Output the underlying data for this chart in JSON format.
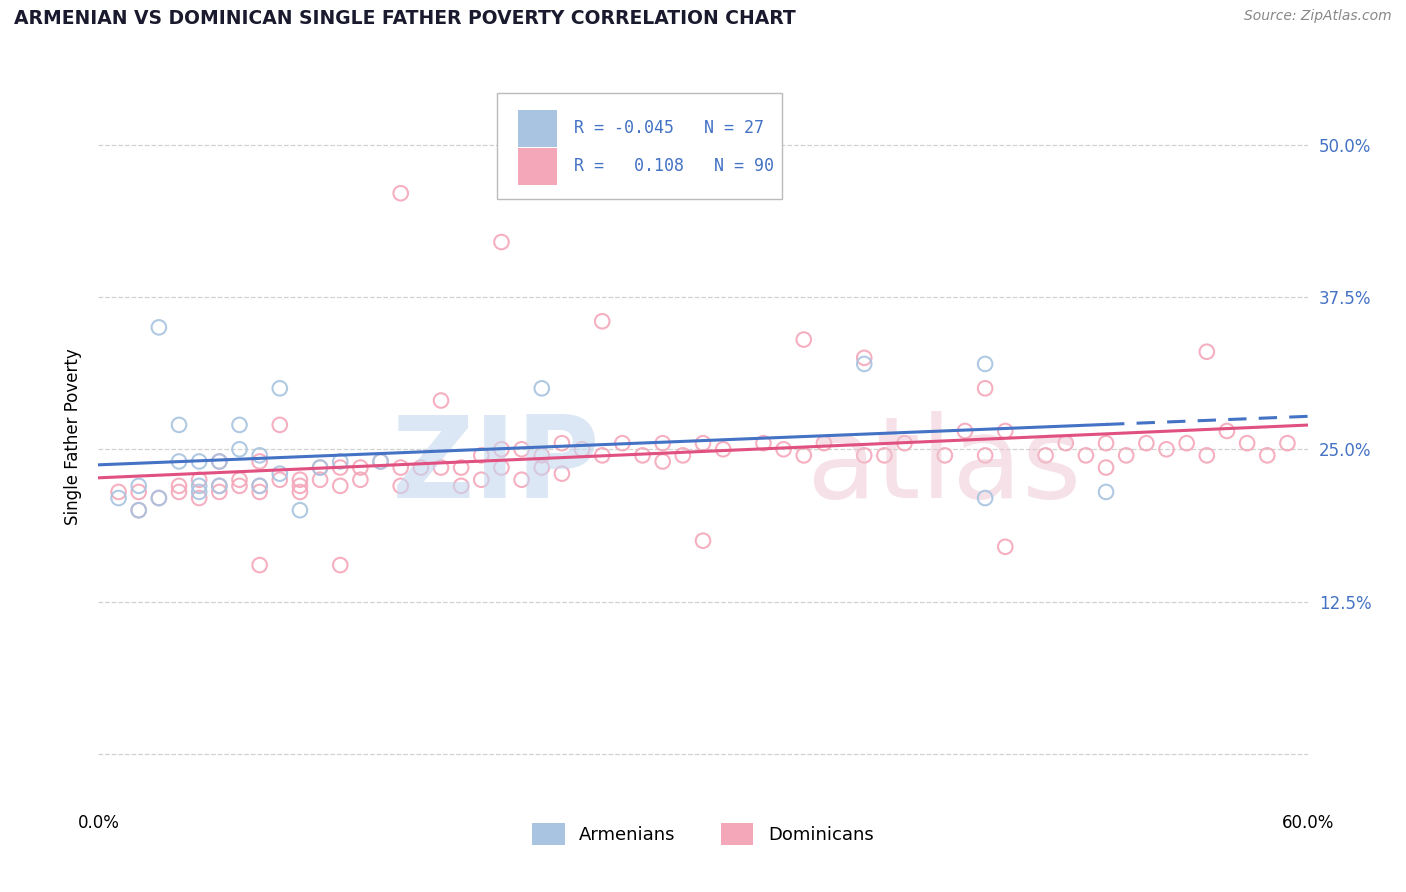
{
  "title": "ARMENIAN VS DOMINICAN SINGLE FATHER POVERTY CORRELATION CHART",
  "source": "Source: ZipAtlas.com",
  "ylabel": "Single Father Poverty",
  "xlim": [
    0.0,
    0.6
  ],
  "ylim": [
    -0.04,
    0.56
  ],
  "armenian_color": "#a8c4e0",
  "dominican_color": "#f4a7b9",
  "armenian_line_color": "#4472c4",
  "dominican_line_color": "#e05080",
  "R_armenian": -0.045,
  "N_armenian": 27,
  "R_dominican": 0.108,
  "N_dominican": 90,
  "legend_label_armenian": "Armenians",
  "legend_label_dominican": "Dominicans",
  "background_color": "#ffffff",
  "grid_color": "#cccccc",
  "yticks": [
    0.0,
    0.125,
    0.25,
    0.375,
    0.5
  ],
  "ytick_labels": [
    "",
    "12.5%",
    "25.0%",
    "37.5%",
    "50.0%"
  ],
  "xtick_positions": [
    0.0,
    0.6
  ],
  "xtick_labels": [
    "0.0%",
    "60.0%"
  ],
  "source_text": "Source: ZipAtlas.com",
  "arm_x": [
    0.01,
    0.02,
    0.02,
    0.03,
    0.03,
    0.04,
    0.04,
    0.05,
    0.05,
    0.05,
    0.06,
    0.06,
    0.07,
    0.07,
    0.08,
    0.08,
    0.09,
    0.09,
    0.1,
    0.11,
    0.12,
    0.14,
    0.22,
    0.38,
    0.44,
    0.44,
    0.5
  ],
  "arm_y": [
    0.21,
    0.2,
    0.22,
    0.35,
    0.21,
    0.27,
    0.24,
    0.22,
    0.24,
    0.215,
    0.24,
    0.22,
    0.27,
    0.25,
    0.245,
    0.22,
    0.23,
    0.3,
    0.2,
    0.235,
    0.24,
    0.24,
    0.3,
    0.32,
    0.32,
    0.21,
    0.215
  ],
  "dom_x": [
    0.01,
    0.02,
    0.02,
    0.03,
    0.04,
    0.04,
    0.05,
    0.05,
    0.06,
    0.06,
    0.06,
    0.07,
    0.07,
    0.08,
    0.08,
    0.08,
    0.09,
    0.09,
    0.1,
    0.1,
    0.1,
    0.11,
    0.11,
    0.12,
    0.12,
    0.13,
    0.13,
    0.14,
    0.15,
    0.15,
    0.16,
    0.17,
    0.17,
    0.18,
    0.18,
    0.19,
    0.19,
    0.2,
    0.2,
    0.21,
    0.21,
    0.22,
    0.22,
    0.23,
    0.23,
    0.24,
    0.25,
    0.26,
    0.27,
    0.28,
    0.28,
    0.29,
    0.3,
    0.31,
    0.33,
    0.34,
    0.35,
    0.36,
    0.38,
    0.38,
    0.39,
    0.4,
    0.42,
    0.43,
    0.44,
    0.45,
    0.45,
    0.47,
    0.48,
    0.49,
    0.5,
    0.51,
    0.52,
    0.53,
    0.54,
    0.55,
    0.56,
    0.57,
    0.58,
    0.59,
    0.15,
    0.2,
    0.25,
    0.35,
    0.44,
    0.5,
    0.55,
    0.08,
    0.12,
    0.3
  ],
  "dom_y": [
    0.215,
    0.2,
    0.215,
    0.21,
    0.215,
    0.22,
    0.21,
    0.225,
    0.22,
    0.215,
    0.24,
    0.22,
    0.225,
    0.24,
    0.215,
    0.22,
    0.27,
    0.225,
    0.22,
    0.215,
    0.225,
    0.235,
    0.225,
    0.235,
    0.22,
    0.235,
    0.225,
    0.24,
    0.235,
    0.22,
    0.235,
    0.29,
    0.235,
    0.235,
    0.22,
    0.245,
    0.225,
    0.25,
    0.235,
    0.25,
    0.225,
    0.245,
    0.235,
    0.255,
    0.23,
    0.25,
    0.245,
    0.255,
    0.245,
    0.255,
    0.24,
    0.245,
    0.255,
    0.25,
    0.255,
    0.25,
    0.245,
    0.255,
    0.245,
    0.325,
    0.245,
    0.255,
    0.245,
    0.265,
    0.245,
    0.17,
    0.265,
    0.245,
    0.255,
    0.245,
    0.255,
    0.245,
    0.255,
    0.25,
    0.255,
    0.245,
    0.265,
    0.255,
    0.245,
    0.255,
    0.46,
    0.42,
    0.355,
    0.34,
    0.3,
    0.235,
    0.33,
    0.155,
    0.155,
    0.175
  ]
}
